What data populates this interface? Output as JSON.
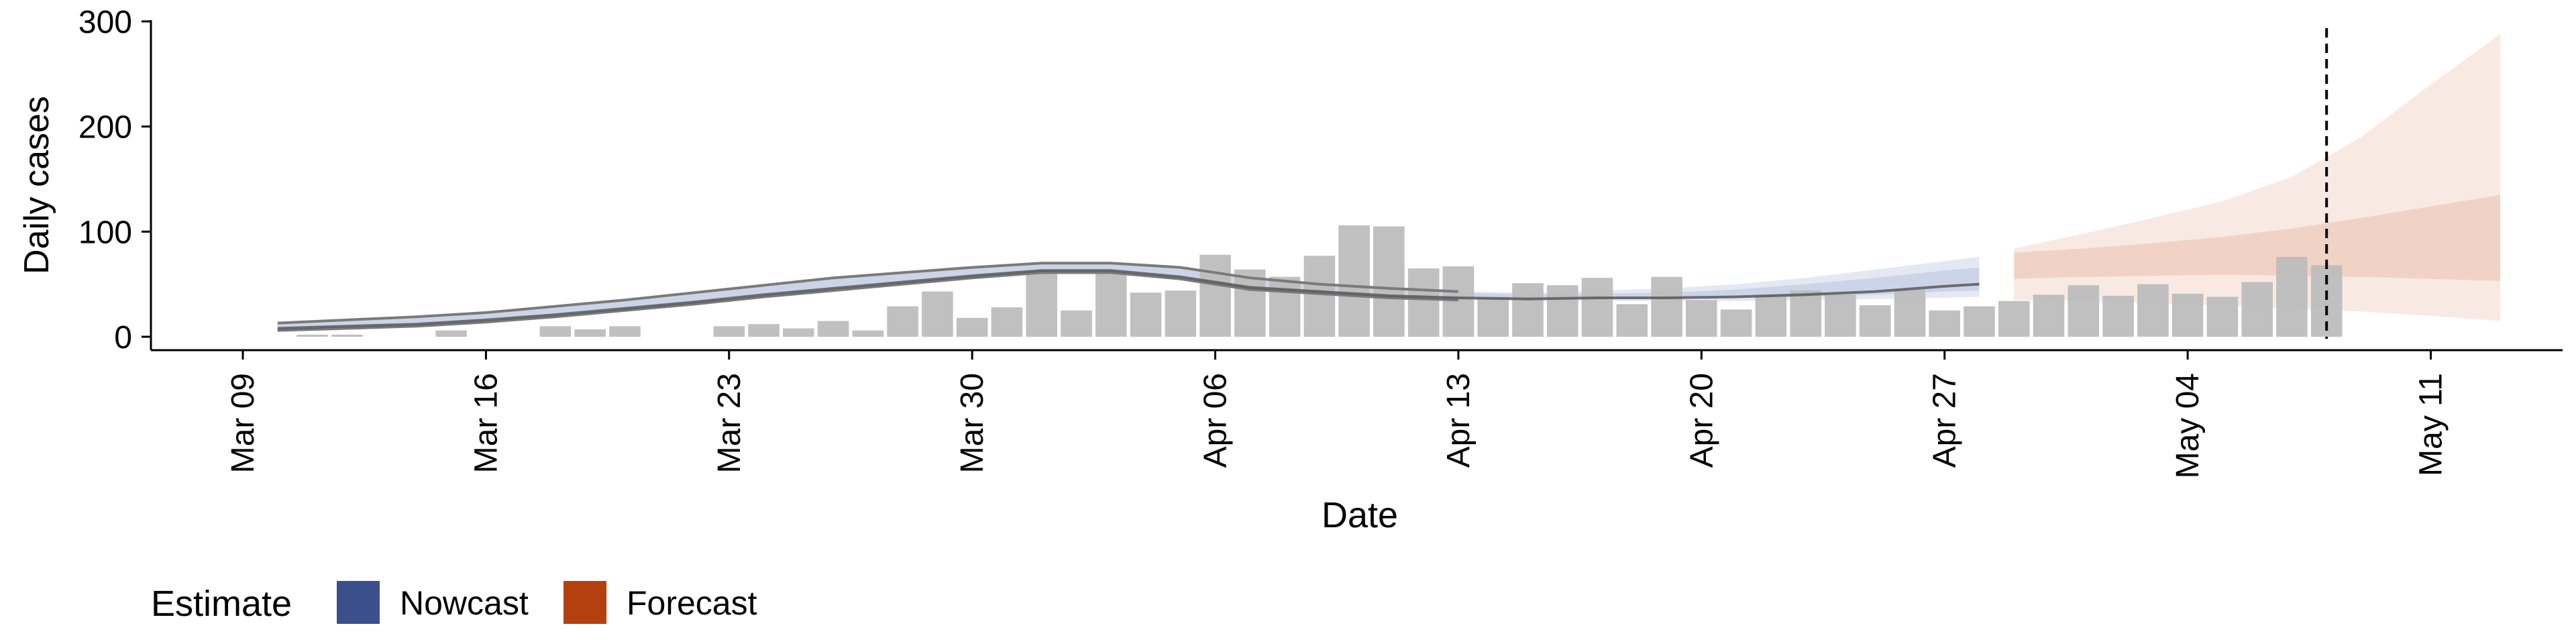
{
  "chart_data": {
    "type": "bar",
    "xlabel": "Date",
    "ylabel": "Daily cases",
    "ylim": [
      -20,
      300
    ],
    "yticks": [
      0,
      100,
      200,
      300
    ],
    "x_tick_labels": [
      "Mar 09",
      "Mar 16",
      "Mar 23",
      "Mar 30",
      "Apr 06",
      "Apr 13",
      "Apr 20",
      "Apr 27",
      "May 04",
      "May 11"
    ],
    "dates": [
      "2020-03-10",
      "2020-03-11",
      "2020-03-12",
      "2020-03-13",
      "2020-03-14",
      "2020-03-15",
      "2020-03-16",
      "2020-03-17",
      "2020-03-18",
      "2020-03-19",
      "2020-03-20",
      "2020-03-21",
      "2020-03-22",
      "2020-03-23",
      "2020-03-24",
      "2020-03-25",
      "2020-03-26",
      "2020-03-27",
      "2020-03-28",
      "2020-03-29",
      "2020-03-30",
      "2020-03-31",
      "2020-04-01",
      "2020-04-02",
      "2020-04-03",
      "2020-04-04",
      "2020-04-05",
      "2020-04-06",
      "2020-04-07",
      "2020-04-08",
      "2020-04-09",
      "2020-04-10",
      "2020-04-11",
      "2020-04-12",
      "2020-04-13",
      "2020-04-14",
      "2020-04-15",
      "2020-04-16",
      "2020-04-17",
      "2020-04-18",
      "2020-04-19",
      "2020-04-20",
      "2020-04-21",
      "2020-04-22",
      "2020-04-23",
      "2020-04-24",
      "2020-04-25",
      "2020-04-26",
      "2020-04-27",
      "2020-04-28",
      "2020-04-29",
      "2020-04-30",
      "2020-05-01",
      "2020-05-02",
      "2020-05-03",
      "2020-05-04",
      "2020-05-05",
      "2020-05-06",
      "2020-05-07",
      "2020-05-08"
    ],
    "daily_cases": [
      0,
      2,
      2,
      0,
      0,
      6,
      0,
      0,
      10,
      7,
      10,
      0,
      0,
      10,
      12,
      8,
      15,
      6,
      29,
      43,
      18,
      28,
      63,
      25,
      60,
      42,
      44,
      78,
      64,
      57,
      77,
      106,
      105,
      65,
      67,
      38,
      51,
      49,
      56,
      31,
      57,
      35,
      26,
      40,
      44,
      40,
      30,
      45,
      25,
      29,
      34,
      40,
      49,
      39,
      50,
      41,
      38,
      52,
      76,
      68
    ],
    "series": [
      {
        "name": "Nowcast",
        "color": "#3b4f8c",
        "median": [
          [
            "2020-03-10",
            8
          ],
          [
            "2020-03-12",
            10
          ],
          [
            "2020-03-14",
            12
          ],
          [
            "2020-03-16",
            16
          ],
          [
            "2020-03-18",
            21
          ],
          [
            "2020-03-20",
            27
          ],
          [
            "2020-03-22",
            33
          ],
          [
            "2020-03-24",
            40
          ],
          [
            "2020-03-26",
            46
          ],
          [
            "2020-03-28",
            52
          ],
          [
            "2020-03-30",
            58
          ],
          [
            "2020-04-01",
            63
          ],
          [
            "2020-04-03",
            63
          ],
          [
            "2020-04-05",
            57
          ],
          [
            "2020-04-07",
            47
          ],
          [
            "2020-04-09",
            43
          ],
          [
            "2020-04-11",
            39
          ],
          [
            "2020-04-13",
            37
          ],
          [
            "2020-04-15",
            36
          ],
          [
            "2020-04-17",
            37
          ],
          [
            "2020-04-19",
            37
          ],
          [
            "2020-04-21",
            38
          ],
          [
            "2020-04-23",
            40
          ],
          [
            "2020-04-25",
            43
          ],
          [
            "2020-04-27",
            48
          ],
          [
            "2020-04-28",
            50
          ]
        ],
        "inner": [
          [
            "2020-03-10",
            7,
            12
          ],
          [
            "2020-03-12",
            9,
            15
          ],
          [
            "2020-03-14",
            11,
            18
          ],
          [
            "2020-03-16",
            15,
            22
          ],
          [
            "2020-03-18",
            20,
            28
          ],
          [
            "2020-03-20",
            26,
            34
          ],
          [
            "2020-03-22",
            32,
            41
          ],
          [
            "2020-03-24",
            39,
            48
          ],
          [
            "2020-03-26",
            45,
            55
          ],
          [
            "2020-03-28",
            51,
            60
          ],
          [
            "2020-03-30",
            57,
            65
          ],
          [
            "2020-04-01",
            62,
            69
          ],
          [
            "2020-04-03",
            62,
            69
          ],
          [
            "2020-04-05",
            56,
            65
          ],
          [
            "2020-04-07",
            46,
            55
          ],
          [
            "2020-04-09",
            42,
            49
          ],
          [
            "2020-04-11",
            38,
            45
          ],
          [
            "2020-04-13",
            36,
            42
          ],
          [
            "2020-04-15",
            35,
            40
          ],
          [
            "2020-04-17",
            36,
            41
          ],
          [
            "2020-04-19",
            36,
            42
          ],
          [
            "2020-04-21",
            37,
            45
          ],
          [
            "2020-04-23",
            38,
            50
          ],
          [
            "2020-04-25",
            40,
            56
          ],
          [
            "2020-04-27",
            43,
            63
          ],
          [
            "2020-04-28",
            44,
            66
          ]
        ],
        "outer": [
          [
            "2020-03-10",
            6,
            13
          ],
          [
            "2020-03-12",
            8,
            16
          ],
          [
            "2020-03-14",
            10,
            19
          ],
          [
            "2020-03-16",
            14,
            23
          ],
          [
            "2020-03-18",
            19,
            29
          ],
          [
            "2020-03-20",
            25,
            35
          ],
          [
            "2020-03-22",
            31,
            42
          ],
          [
            "2020-03-24",
            38,
            49
          ],
          [
            "2020-03-26",
            44,
            56
          ],
          [
            "2020-03-28",
            50,
            61
          ],
          [
            "2020-03-30",
            56,
            66
          ],
          [
            "2020-04-01",
            61,
            70
          ],
          [
            "2020-04-03",
            61,
            70
          ],
          [
            "2020-04-05",
            55,
            66
          ],
          [
            "2020-04-07",
            45,
            56
          ],
          [
            "2020-04-09",
            41,
            50
          ],
          [
            "2020-04-11",
            37,
            46
          ],
          [
            "2020-04-13",
            35,
            43
          ],
          [
            "2020-04-15",
            34,
            42
          ],
          [
            "2020-04-17",
            34,
            44
          ],
          [
            "2020-04-19",
            34,
            46
          ],
          [
            "2020-04-21",
            34,
            50
          ],
          [
            "2020-04-23",
            35,
            56
          ],
          [
            "2020-04-25",
            36,
            64
          ],
          [
            "2020-04-27",
            37,
            72
          ],
          [
            "2020-04-28",
            38,
            76
          ]
        ]
      },
      {
        "name": "Forecast",
        "color": "#b5400f",
        "inner": [
          [
            "2020-04-29",
            55,
            80
          ],
          [
            "2020-05-01",
            57,
            84
          ],
          [
            "2020-05-03",
            58,
            89
          ],
          [
            "2020-05-05",
            59,
            95
          ],
          [
            "2020-05-07",
            58,
            103
          ],
          [
            "2020-05-09",
            57,
            113
          ],
          [
            "2020-05-11",
            55,
            124
          ],
          [
            "2020-05-13",
            53,
            135
          ]
        ],
        "outer": [
          [
            "2020-04-29",
            35,
            84
          ],
          [
            "2020-05-01",
            34,
            98
          ],
          [
            "2020-05-03",
            32,
            113
          ],
          [
            "2020-05-05",
            30,
            129
          ],
          [
            "2020-05-07",
            27,
            152
          ],
          [
            "2020-05-09",
            24,
            190
          ],
          [
            "2020-05-11",
            20,
            240
          ],
          [
            "2020-05-13",
            15,
            288
          ]
        ]
      }
    ],
    "vline_date": "2020-05-08",
    "legend": {
      "title": "Estimate",
      "position": "bottom-left",
      "entries": [
        "Nowcast",
        "Forecast"
      ]
    },
    "grid": false
  },
  "colors": {
    "bars": "#bdbdbd",
    "nowcast_band": "#c4cde3",
    "nowcast_line": "#4a4a4a",
    "forecast_band": "#f0cfc0",
    "vline": "#000000"
  }
}
